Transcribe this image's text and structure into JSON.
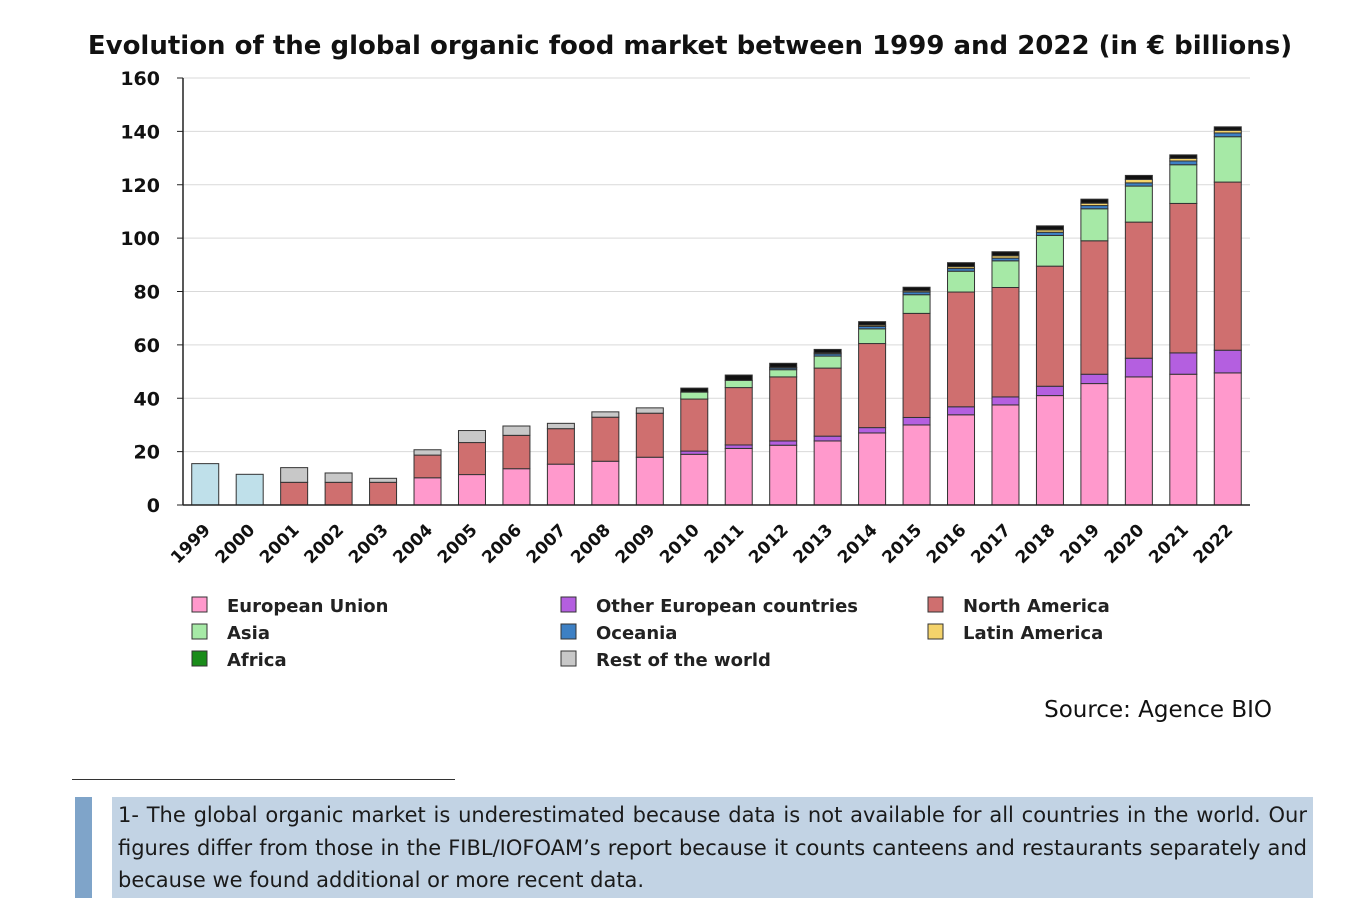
{
  "chart_data": {
    "type": "bar",
    "stacked": true,
    "title": "Evolution of the global organic food market between 1999 and 2022 (in € billions)",
    "xlabel": "",
    "ylabel": "",
    "ylim": [
      0,
      160
    ],
    "yticks": [
      0,
      20,
      40,
      60,
      80,
      100,
      120,
      140,
      160
    ],
    "grid": true,
    "categories": [
      "1999",
      "2000",
      "2001",
      "2002",
      "2003",
      "2004",
      "2005",
      "2006",
      "2007",
      "2008",
      "2009",
      "2010",
      "2011",
      "2012",
      "2013",
      "2014",
      "2015",
      "2016",
      "2017",
      "2018",
      "2019",
      "2020",
      "2021",
      "2022"
    ],
    "total_only": {
      "color": "#bfe0ea",
      "values": [
        15.5,
        11.5,
        null,
        null,
        null,
        null,
        null,
        null,
        null,
        null,
        null,
        null,
        null,
        null,
        null,
        null,
        null,
        null,
        null,
        null,
        null,
        null,
        null,
        null
      ]
    },
    "series": [
      {
        "name": "European Union",
        "color": "#ff99cc",
        "values": [
          0,
          0,
          0,
          0,
          0,
          10.2,
          11.4,
          13.6,
          15.3,
          16.4,
          17.9,
          19.0,
          21.2,
          22.4,
          24.0,
          27.0,
          30.0,
          33.8,
          37.5,
          41.0,
          45.5,
          48.0,
          49.0,
          49.5
        ]
      },
      {
        "name": "Other European countries",
        "color": "#b45fe0",
        "values": [
          0,
          0,
          0,
          0,
          0,
          0,
          0,
          0,
          0,
          0,
          0,
          1.2,
          1.3,
          1.6,
          1.8,
          2.0,
          2.8,
          3.0,
          3.0,
          3.5,
          3.5,
          7.0,
          8.0,
          8.5
        ]
      },
      {
        "name": "North America",
        "color": "#cf6f6f",
        "values": [
          0,
          0,
          8.5,
          8.5,
          8.5,
          8.5,
          12.0,
          12.5,
          13.3,
          16.5,
          16.5,
          19.5,
          21.5,
          24.0,
          25.5,
          31.5,
          39.0,
          43.0,
          41.0,
          45.0,
          50.0,
          51.0,
          56.0,
          63.0
        ]
      },
      {
        "name": "Asia",
        "color": "#a6e9a6",
        "values": [
          0,
          0,
          0,
          0,
          0,
          0,
          0,
          0,
          0,
          0,
          0,
          2.6,
          2.7,
          2.7,
          4.5,
          5.5,
          7.0,
          7.8,
          10.0,
          11.5,
          12.0,
          13.5,
          14.5,
          17.0
        ]
      },
      {
        "name": "Oceania",
        "color": "#3d80c4",
        "values": [
          0,
          0,
          0,
          0,
          0,
          0,
          0,
          0,
          0,
          0,
          0,
          0,
          0,
          0.6,
          0.8,
          0.9,
          1.0,
          1.0,
          1.0,
          1.2,
          1.2,
          1.2,
          1.4,
          1.4
        ]
      },
      {
        "name": "Latin America",
        "color": "#f4d36b",
        "values": [
          0,
          0,
          0,
          0,
          0,
          0,
          0,
          0,
          0,
          0,
          0,
          0,
          0,
          0.3,
          0.4,
          0.5,
          0.5,
          0.7,
          0.9,
          0.9,
          0.9,
          1.3,
          1.0,
          1.0
        ]
      },
      {
        "name": "Africa",
        "color": "#1a8c1a",
        "values": [
          0,
          0,
          0,
          0,
          0,
          0,
          0,
          0,
          0,
          0,
          0,
          0,
          0,
          0,
          0,
          0,
          0,
          0,
          0,
          0,
          0,
          0,
          0,
          0
        ]
      },
      {
        "name": "Rest of the world",
        "color": "#c8c8c8",
        "values": [
          0,
          0,
          5.5,
          3.5,
          1.5,
          2.0,
          4.5,
          3.5,
          2.0,
          2.0,
          2.0,
          0,
          0,
          0,
          0,
          0,
          0,
          0,
          0,
          0,
          0,
          0,
          0,
          0
        ]
      },
      {
        "name": "Unlabeled (top segment)",
        "color": "#111111",
        "values": [
          0,
          0,
          0,
          0,
          0,
          0,
          0,
          0,
          0,
          0,
          0,
          1.5,
          2.0,
          1.5,
          1.3,
          1.3,
          1.3,
          1.5,
          1.5,
          1.5,
          1.5,
          1.5,
          1.3,
          1.3
        ]
      }
    ],
    "legend": {
      "placement": "bottom",
      "entries": [
        {
          "name": "European Union",
          "color": "#ff99cc"
        },
        {
          "name": "Other European countries",
          "color": "#b45fe0"
        },
        {
          "name": "North America",
          "color": "#cf6f6f"
        },
        {
          "name": "Asia",
          "color": "#a6e9a6"
        },
        {
          "name": "Oceania",
          "color": "#3d80c4"
        },
        {
          "name": "Latin America",
          "color": "#f4d36b"
        },
        {
          "name": "Africa",
          "color": "#1a8c1a"
        },
        {
          "name": "Rest of the world",
          "color": "#c8c8c8"
        }
      ]
    }
  },
  "source": "Source: Agence BIO",
  "footnote": "1- The global organic market is underestimated because data is not available for all countries in the world. Our figures differ from those in the FIBL/IOFOAM’s report because it counts canteens and restaurants separately and because we found additional or more recent data."
}
